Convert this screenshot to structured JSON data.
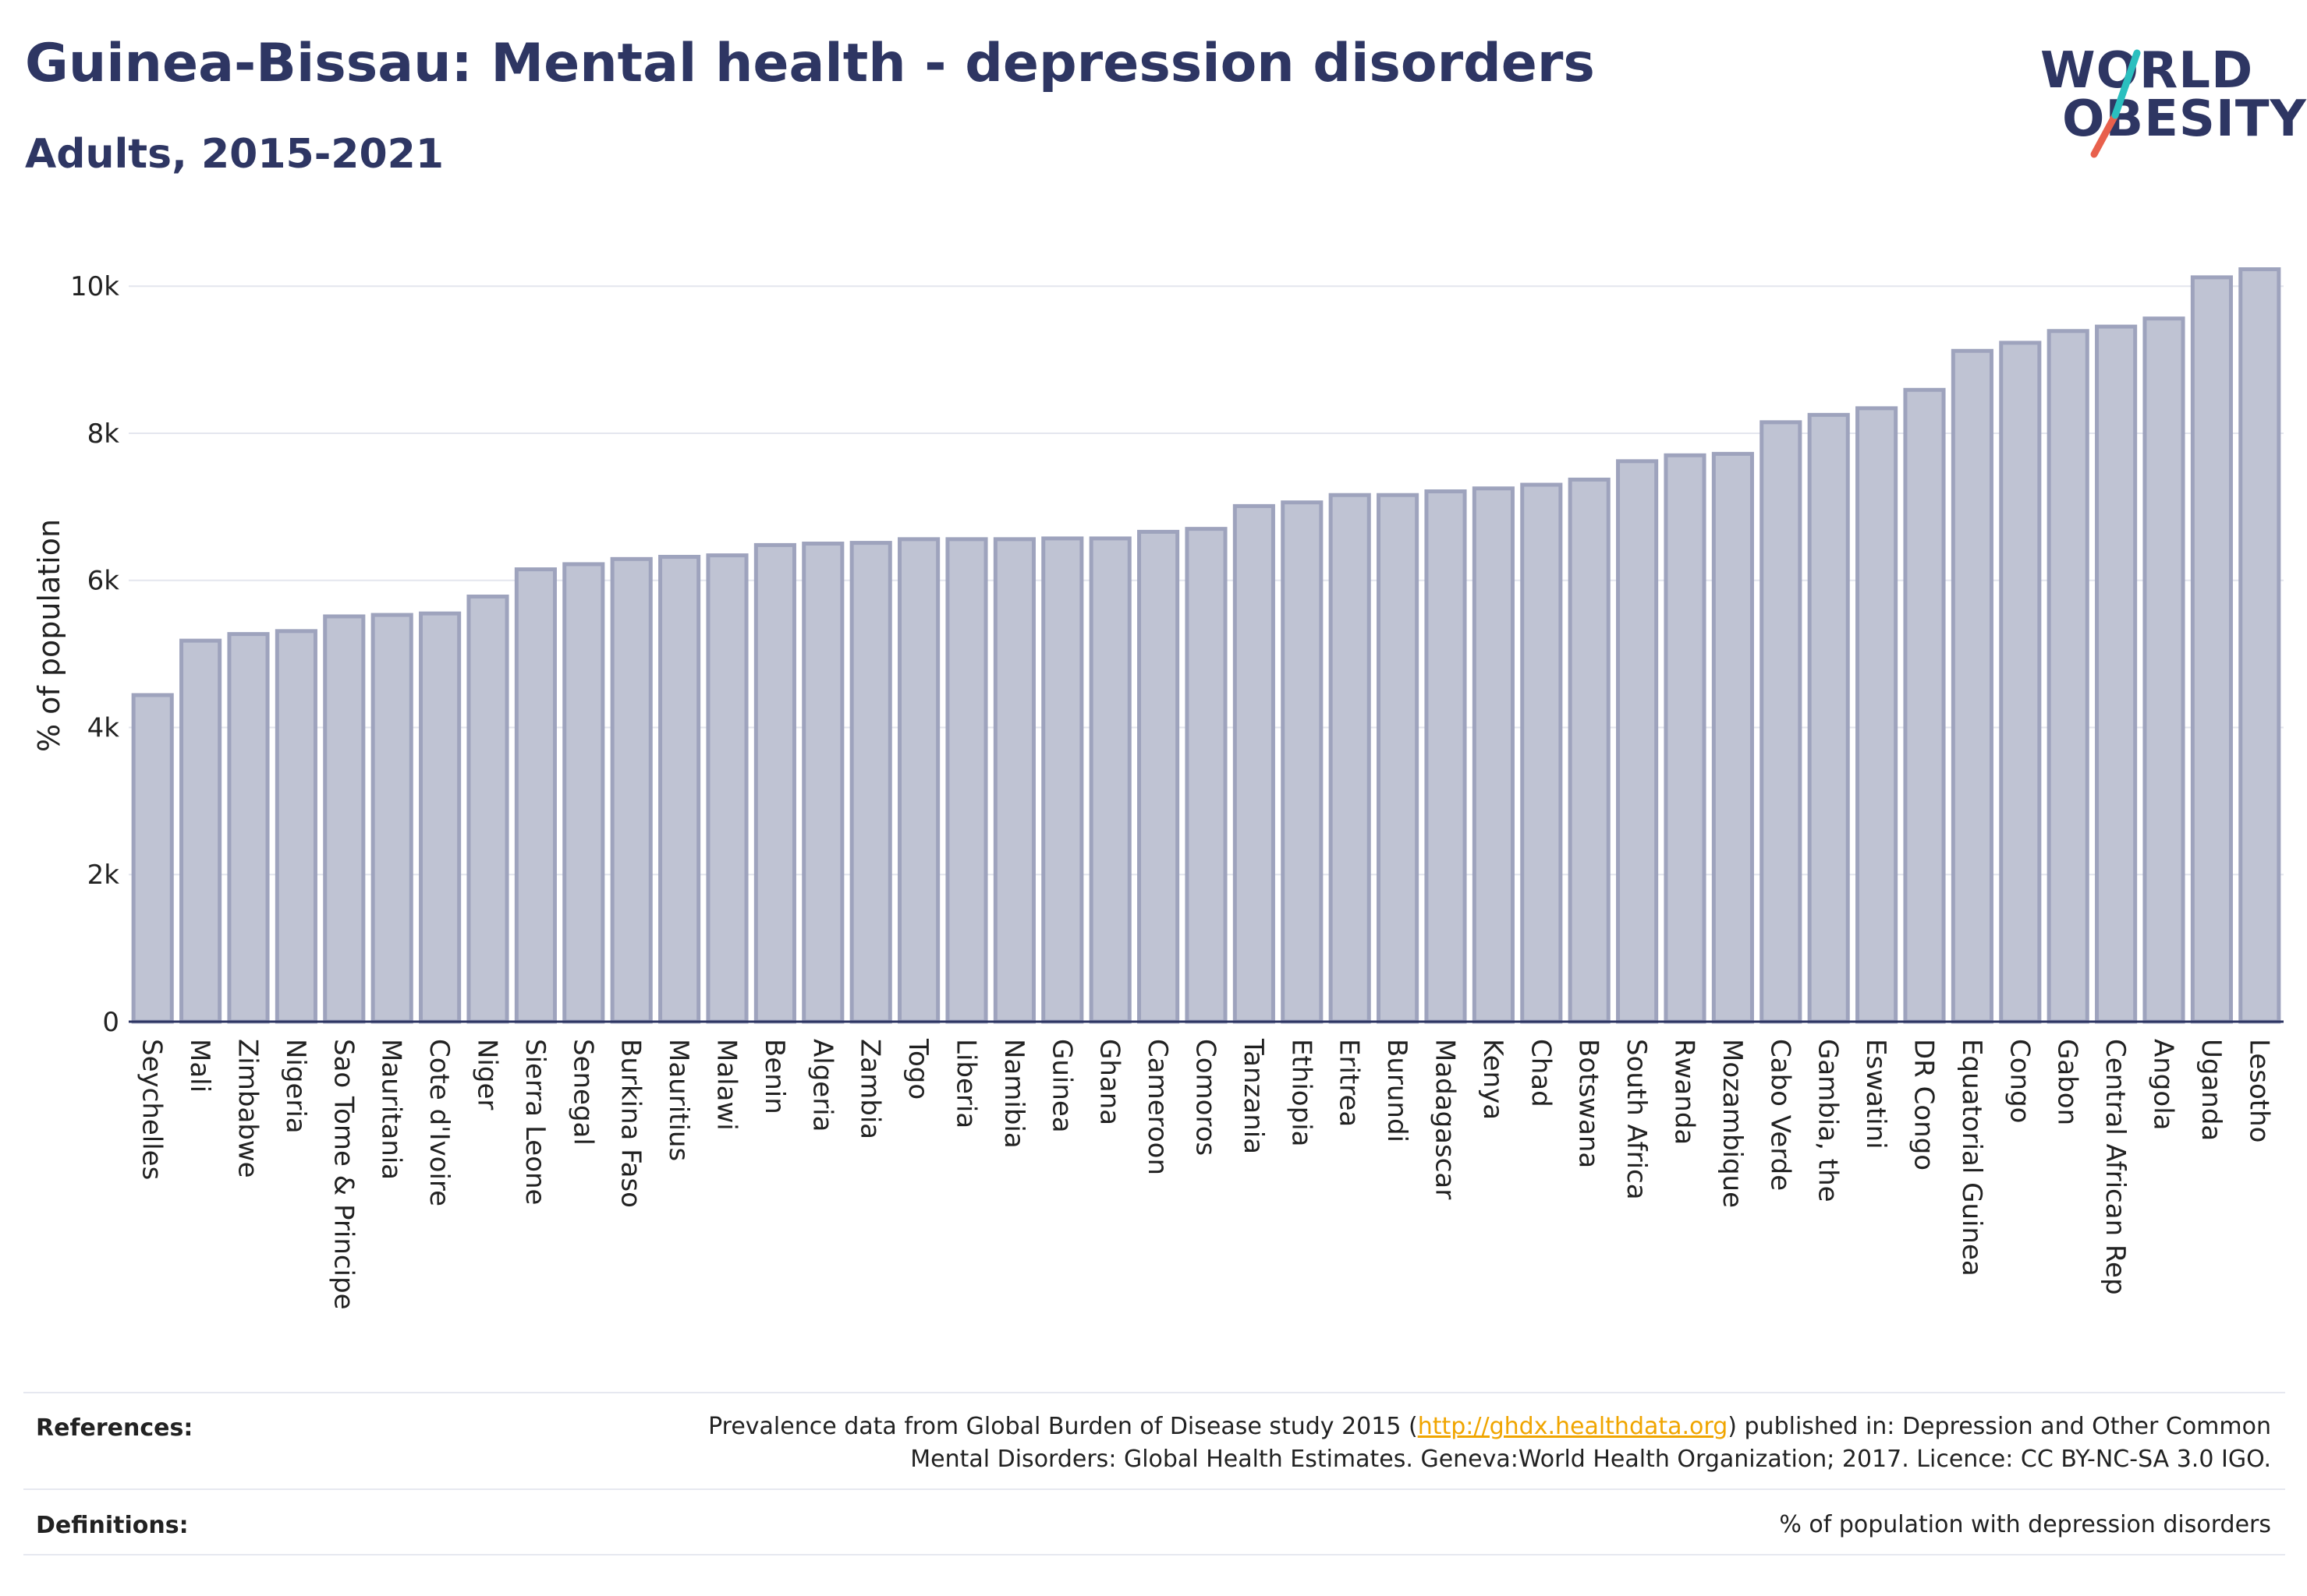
{
  "header": {
    "title": "Guinea-Bissau: Mental health - depression disorders",
    "subtitle": "Adults, 2015-2021"
  },
  "logo": {
    "line1": "WORLD",
    "line2": "OBESITY",
    "colors": {
      "text": "#2e3663",
      "slash_top": "#2bbfbf",
      "slash_bottom": "#e8604c"
    }
  },
  "chart_data": {
    "type": "bar",
    "ylabel": "% of population",
    "xlabel": "",
    "ylim": [
      0,
      10500
    ],
    "yticks": [
      0,
      2000,
      4000,
      6000,
      8000,
      10000
    ],
    "ytick_labels": [
      "0",
      "2k",
      "4k",
      "6k",
      "8k",
      "10k"
    ],
    "grid": true,
    "bar_fill": "#bfc3d3",
    "bar_stroke": "#9ea3bd",
    "categories": [
      "Seychelles",
      "Mali",
      "Zimbabwe",
      "Nigeria",
      "Sao Tome & Principe",
      "Mauritania",
      "Cote d'Ivoire",
      "Niger",
      "Sierra Leone",
      "Senegal",
      "Burkina Faso",
      "Mauritius",
      "Malawi",
      "Benin",
      "Algeria",
      "Zambia",
      "Togo",
      "Liberia",
      "Namibia",
      "Guinea",
      "Ghana",
      "Cameroon",
      "Comoros",
      "Tanzania",
      "Ethiopia",
      "Eritrea",
      "Burundi",
      "Madagascar",
      "Kenya",
      "Chad",
      "Botswana",
      "South Africa",
      "Rwanda",
      "Mozambique",
      "Cabo Verde",
      "Gambia, the",
      "Eswatini",
      "DR Congo",
      "Equatorial Guinea",
      "Congo",
      "Gabon",
      "Central African Rep",
      "Angola",
      "Uganda",
      "Lesotho"
    ],
    "values": [
      4440,
      5180,
      5270,
      5310,
      5510,
      5530,
      5550,
      5780,
      6150,
      6220,
      6290,
      6320,
      6340,
      6480,
      6500,
      6510,
      6560,
      6560,
      6560,
      6570,
      6570,
      6660,
      6700,
      7010,
      7060,
      7160,
      7160,
      7210,
      7250,
      7300,
      7370,
      7620,
      7700,
      7720,
      8150,
      8250,
      8340,
      8590,
      9120,
      9230,
      9390,
      9450,
      9560,
      10120,
      10230
    ]
  },
  "footer": {
    "references_label": "References:",
    "references_text_1": "Prevalence data from Global Burden of Disease study 2015 (",
    "references_link": "http://ghdx.healthdata.org",
    "references_text_2": ") published in: Depression and Other Common",
    "references_text_3": "Mental Disorders: Global Health Estimates. Geneva:World Health Organization; 2017. Licence: CC BY-NC-SA 3.0 IGO.",
    "definitions_label": "Definitions:",
    "definitions_text": "% of population with depression disorders"
  }
}
